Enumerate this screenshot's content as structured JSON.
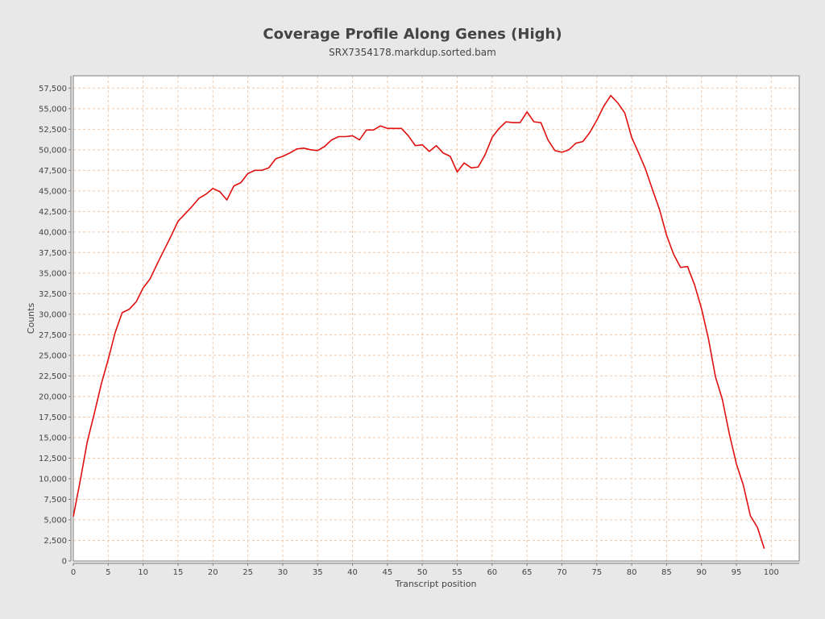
{
  "chart_data": {
    "type": "line",
    "title": "Coverage Profile Along Genes (High)",
    "subtitle": "SRX7354178.markdup.sorted.bam",
    "xlabel": "Transcript position",
    "ylabel": "Counts",
    "xlim": [
      0,
      104
    ],
    "ylim": [
      0,
      59000
    ],
    "x_ticks": [
      0,
      5,
      10,
      15,
      20,
      25,
      30,
      35,
      40,
      45,
      50,
      55,
      60,
      65,
      70,
      75,
      80,
      85,
      90,
      95,
      100
    ],
    "y_ticks": [
      0,
      2500,
      5000,
      7500,
      10000,
      12500,
      15000,
      17500,
      20000,
      22500,
      25000,
      27500,
      30000,
      32500,
      35000,
      37500,
      40000,
      42500,
      45000,
      47500,
      50000,
      52500,
      55000,
      57500
    ],
    "y_tick_labels": [
      "0",
      "2,500",
      "5,000",
      "7,500",
      "10,000",
      "12,500",
      "15,000",
      "17,500",
      "20,000",
      "22,500",
      "25,000",
      "27,500",
      "30,000",
      "32,500",
      "35,000",
      "37,500",
      "40,000",
      "42,500",
      "45,000",
      "47,500",
      "50,000",
      "52,500",
      "55,000",
      "57,500"
    ],
    "grid": true,
    "series": [
      {
        "color": "#e01010",
        "x": [
          0,
          1,
          2,
          3,
          4,
          5,
          6,
          7,
          8,
          9,
          10,
          11,
          12,
          13,
          14,
          15,
          16,
          17,
          18,
          19,
          20,
          21,
          22,
          23,
          24,
          25,
          26,
          27,
          28,
          29,
          30,
          31,
          32,
          33,
          34,
          35,
          36,
          37,
          38,
          39,
          40,
          41,
          42,
          43,
          44,
          45,
          46,
          47,
          48,
          49,
          50,
          51,
          52,
          53,
          54,
          55,
          56,
          57,
          58,
          59,
          60,
          61,
          62,
          63,
          64,
          65,
          66,
          67,
          68,
          69,
          70,
          71,
          72,
          73,
          74,
          75,
          76,
          77,
          78,
          79,
          80,
          81,
          82,
          83,
          84,
          85,
          86,
          87,
          88,
          89,
          90,
          91,
          92,
          93,
          94,
          95,
          96,
          97,
          98,
          99
        ],
        "values": [
          5400,
          9800,
          14500,
          17900,
          21500,
          24500,
          27800,
          30200,
          30600,
          31500,
          33200,
          34300,
          36100,
          37800,
          39500,
          41300,
          42200,
          43100,
          44100,
          44600,
          45300,
          44900,
          43900,
          45600,
          46000,
          47100,
          47500,
          47500,
          47800,
          48900,
          49200,
          49600,
          50100,
          50200,
          50000,
          49900,
          50400,
          51200,
          51600,
          51600,
          51700,
          51200,
          52400,
          52400,
          52900,
          52600,
          52600,
          52600,
          51700,
          50500,
          50600,
          49800,
          50500,
          49600,
          49200,
          47300,
          48400,
          47800,
          47900,
          49400,
          51500,
          52600,
          53400,
          53300,
          53300,
          54600,
          53400,
          53300,
          51200,
          49900,
          49700,
          50000,
          50800,
          51000,
          52100,
          53600,
          55300,
          56600,
          55700,
          54500,
          51500,
          49600,
          47600,
          45100,
          42700,
          39600,
          37300,
          35700,
          35800,
          33600,
          30700,
          27000,
          22400,
          19600,
          15400,
          11800,
          9200,
          5500,
          4100,
          1500
        ]
      }
    ]
  }
}
